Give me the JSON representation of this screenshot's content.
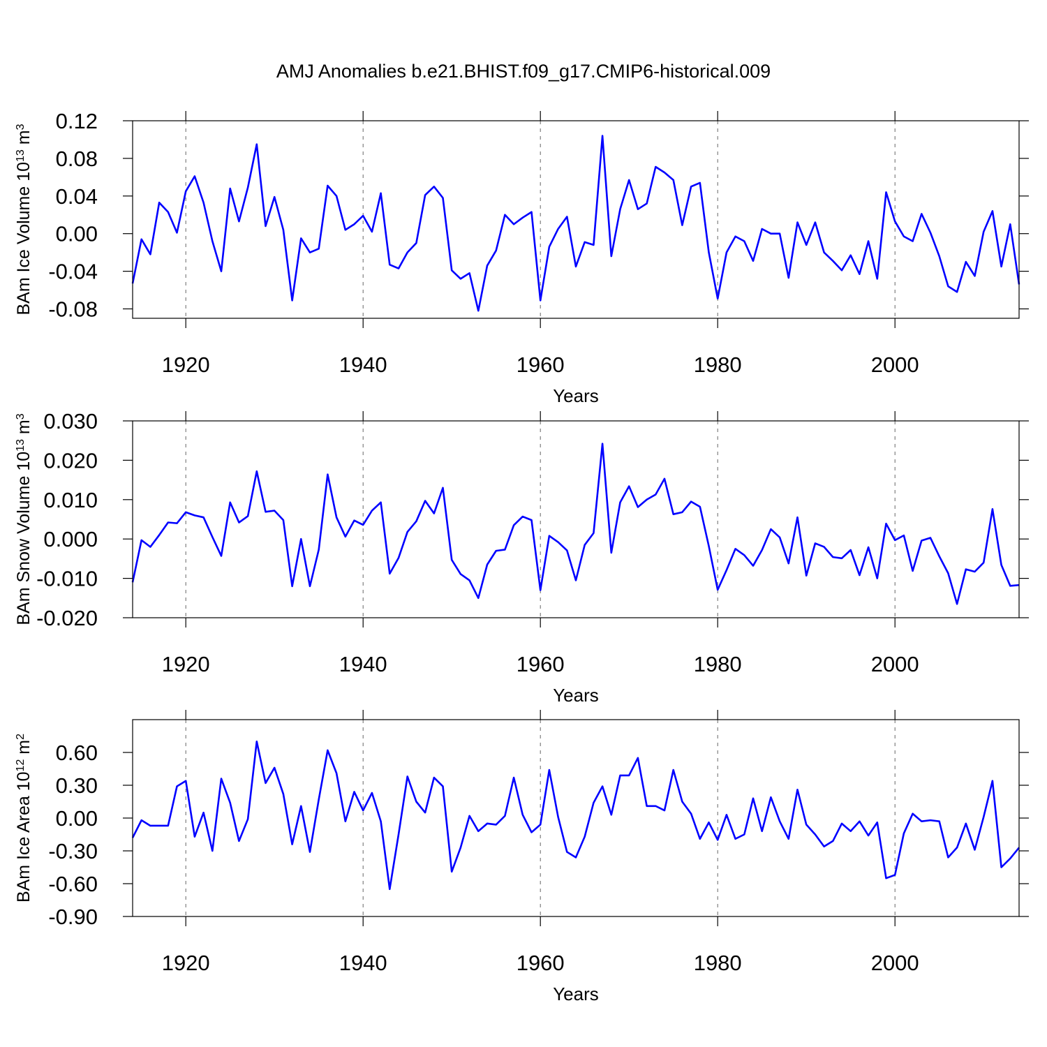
{
  "title": "AMJ Anomalies b.e21.BHIST.f09_g17.CMIP6-historical.009",
  "chart_data": [
    {
      "type": "line",
      "ylabel": [
        "BAm Ice Volume 10",
        "13",
        " m",
        "3"
      ],
      "xlabel": "Years",
      "xlim": [
        1914,
        2014
      ],
      "xticks": [
        1920,
        1940,
        1960,
        1980,
        2000
      ],
      "ylim": [
        -0.09,
        0.12
      ],
      "yticks": [
        0.12,
        0.08,
        0.04,
        {
          "value": 0,
          "label": "0.00"
        },
        -0.04,
        -0.08
      ],
      "xgrid": true,
      "x": [
        1914,
        1915,
        1916,
        1917,
        1918,
        1919,
        1920,
        1921,
        1922,
        1923,
        1924,
        1925,
        1926,
        1927,
        1928,
        1929,
        1930,
        1931,
        1932,
        1933,
        1934,
        1935,
        1936,
        1937,
        1938,
        1939,
        1940,
        1941,
        1942,
        1943,
        1944,
        1945,
        1946,
        1947,
        1948,
        1949,
        1950,
        1951,
        1952,
        1953,
        1954,
        1955,
        1956,
        1957,
        1958,
        1959,
        1960,
        1961,
        1962,
        1963,
        1964,
        1965,
        1966,
        1967,
        1968,
        1969,
        1970,
        1971,
        1972,
        1973,
        1974,
        1975,
        1976,
        1977,
        1978,
        1979,
        1980,
        1981,
        1982,
        1983,
        1984,
        1985,
        1986,
        1987,
        1988,
        1989,
        1990,
        1991,
        1992,
        1993,
        1994,
        1995,
        1996,
        1997,
        1998,
        1999,
        2000,
        2001,
        2002,
        2003,
        2004,
        2005,
        2006,
        2007,
        2008,
        2009,
        2010,
        2011,
        2012,
        2013,
        2014
      ],
      "series": [
        {
          "color": "#0000ff",
          "values": [
            -0.053,
            -0.006,
            -0.022,
            0.033,
            0.023,
            0.001,
            0.045,
            0.061,
            0.033,
            -0.008,
            -0.04,
            0.048,
            0.013,
            0.049,
            0.095,
            0.008,
            0.039,
            0.004,
            -0.071,
            -0.005,
            -0.02,
            -0.016,
            0.051,
            0.04,
            0.004,
            0.01,
            0.019,
            0.002,
            0.043,
            -0.033,
            -0.037,
            -0.02,
            -0.01,
            0.041,
            0.05,
            0.038,
            -0.039,
            -0.048,
            -0.042,
            -0.082,
            -0.034,
            -0.018,
            0.02,
            0.01,
            0.017,
            0.023,
            -0.071,
            -0.014,
            0.005,
            0.018,
            -0.035,
            -0.009,
            -0.012,
            0.104,
            -0.024,
            0.026,
            0.057,
            0.026,
            0.032,
            0.071,
            0.065,
            0.057,
            0.009,
            0.05,
            0.054,
            -0.02,
            -0.069,
            -0.02,
            -0.003,
            -0.008,
            -0.029,
            0.005,
            0.0,
            0.0,
            -0.047,
            0.012,
            -0.012,
            0.012,
            -0.02,
            -0.029,
            -0.039,
            -0.023,
            -0.043,
            -0.008,
            -0.048,
            0.044,
            0.013,
            -0.003,
            -0.008,
            0.021,
            0.001,
            -0.024,
            -0.056,
            -0.062,
            -0.03,
            -0.045,
            0.002,
            0.024,
            -0.035,
            0.01,
            -0.054
          ]
        }
      ]
    },
    {
      "type": "line",
      "ylabel": [
        "BAm Snow Volume 10",
        "13",
        " m",
        "3"
      ],
      "xlabel": "Years",
      "xlim": [
        1914,
        2014
      ],
      "xticks": [
        1920,
        1940,
        1960,
        1980,
        2000
      ],
      "ylim": [
        -0.02,
        0.03
      ],
      "yticks": [
        {
          "value": 0.03,
          "label": "0.030"
        },
        {
          "value": 0.02,
          "label": "0.020"
        },
        {
          "value": 0.01,
          "label": "0.010"
        },
        {
          "value": 0,
          "label": "0.000"
        },
        {
          "value": -0.01,
          "label": "-0.010"
        },
        {
          "value": -0.02,
          "label": "-0.020"
        }
      ],
      "xgrid": true,
      "x": [
        1914,
        1915,
        1916,
        1917,
        1918,
        1919,
        1920,
        1921,
        1922,
        1923,
        1924,
        1925,
        1926,
        1927,
        1928,
        1929,
        1930,
        1931,
        1932,
        1933,
        1934,
        1935,
        1936,
        1937,
        1938,
        1939,
        1940,
        1941,
        1942,
        1943,
        1944,
        1945,
        1946,
        1947,
        1948,
        1949,
        1950,
        1951,
        1952,
        1953,
        1954,
        1955,
        1956,
        1957,
        1958,
        1959,
        1960,
        1961,
        1962,
        1963,
        1964,
        1965,
        1966,
        1967,
        1968,
        1969,
        1970,
        1971,
        1972,
        1973,
        1974,
        1975,
        1976,
        1977,
        1978,
        1979,
        1980,
        1981,
        1982,
        1983,
        1984,
        1985,
        1986,
        1987,
        1988,
        1989,
        1990,
        1991,
        1992,
        1993,
        1994,
        1995,
        1996,
        1997,
        1998,
        1999,
        2000,
        2001,
        2002,
        2003,
        2004,
        2005,
        2006,
        2007,
        2008,
        2009,
        2010,
        2011,
        2012,
        2013,
        2014
      ],
      "series": [
        {
          "color": "#0000ff",
          "values": [
            -0.011,
            -0.0003,
            -0.002,
            0.001,
            0.0042,
            0.004,
            0.0068,
            0.006,
            0.0055,
            0.0005,
            -0.0043,
            0.0093,
            0.0042,
            0.0058,
            0.0172,
            0.0069,
            0.0072,
            0.0048,
            -0.012,
            0.0,
            -0.012,
            -0.0027,
            0.0164,
            0.0055,
            0.0006,
            0.0047,
            0.0036,
            0.0072,
            0.0093,
            -0.0088,
            -0.0048,
            0.0018,
            0.0045,
            0.0097,
            0.0065,
            0.013,
            -0.0053,
            -0.0089,
            -0.0105,
            -0.015,
            -0.0065,
            -0.003,
            -0.0027,
            0.0035,
            0.0057,
            0.0048,
            -0.013,
            0.0008,
            -0.0008,
            -0.0029,
            -0.0105,
            -0.0015,
            0.0015,
            0.0242,
            -0.0035,
            0.0093,
            0.0134,
            0.0081,
            0.01,
            0.0113,
            0.0153,
            0.0063,
            0.0068,
            0.0095,
            0.0082,
            -0.0018,
            -0.0129,
            -0.0079,
            -0.0025,
            -0.0041,
            -0.0068,
            -0.0028,
            0.0025,
            0.0004,
            -0.0062,
            0.0055,
            -0.0093,
            -0.0011,
            -0.002,
            -0.0046,
            -0.0049,
            -0.0028,
            -0.0092,
            -0.0021,
            -0.01,
            0.0039,
            -0.0003,
            0.0009,
            -0.0081,
            -0.0004,
            0.0003,
            -0.0044,
            -0.0087,
            -0.0165,
            -0.0077,
            -0.0083,
            -0.006,
            0.0076,
            -0.0066,
            -0.0119,
            -0.0117
          ]
        }
      ]
    },
    {
      "type": "line",
      "ylabel": [
        "BAm Ice Area 10",
        "12",
        " m",
        "2"
      ],
      "xlabel": "Years",
      "xlim": [
        1914,
        2014
      ],
      "xticks": [
        1920,
        1940,
        1960,
        1980,
        2000
      ],
      "ylim": [
        -0.9,
        0.9
      ],
      "yticks": [
        {
          "value": 0.6,
          "label": "0.60"
        },
        {
          "value": 0.3,
          "label": "0.30"
        },
        {
          "value": 0,
          "label": "0.00"
        },
        {
          "value": -0.3,
          "label": "-0.30"
        },
        {
          "value": -0.6,
          "label": "-0.60"
        },
        {
          "value": -0.9,
          "label": "-0.90"
        }
      ],
      "xgrid": true,
      "x": [
        1914,
        1915,
        1916,
        1917,
        1918,
        1919,
        1920,
        1921,
        1922,
        1923,
        1924,
        1925,
        1926,
        1927,
        1928,
        1929,
        1930,
        1931,
        1932,
        1933,
        1934,
        1935,
        1936,
        1937,
        1938,
        1939,
        1940,
        1941,
        1942,
        1943,
        1944,
        1945,
        1946,
        1947,
        1948,
        1949,
        1950,
        1951,
        1952,
        1953,
        1954,
        1955,
        1956,
        1957,
        1958,
        1959,
        1960,
        1961,
        1962,
        1963,
        1964,
        1965,
        1966,
        1967,
        1968,
        1969,
        1970,
        1971,
        1972,
        1973,
        1974,
        1975,
        1976,
        1977,
        1978,
        1979,
        1980,
        1981,
        1982,
        1983,
        1984,
        1985,
        1986,
        1987,
        1988,
        1989,
        1990,
        1991,
        1992,
        1993,
        1994,
        1995,
        1996,
        1997,
        1998,
        1999,
        2000,
        2001,
        2002,
        2003,
        2004,
        2005,
        2006,
        2007,
        2008,
        2009,
        2010,
        2011,
        2012,
        2013,
        2014
      ],
      "series": [
        {
          "color": "#0000ff",
          "values": [
            -0.18,
            -0.02,
            -0.07,
            -0.07,
            -0.07,
            0.29,
            0.34,
            -0.17,
            0.05,
            -0.3,
            0.36,
            0.14,
            -0.21,
            -0.01,
            0.7,
            0.32,
            0.46,
            0.22,
            -0.24,
            0.11,
            -0.31,
            0.17,
            0.62,
            0.41,
            -0.03,
            0.24,
            0.07,
            0.23,
            -0.03,
            -0.65,
            -0.15,
            0.38,
            0.15,
            0.05,
            0.37,
            0.29,
            -0.49,
            -0.27,
            0.02,
            -0.12,
            -0.05,
            -0.06,
            0.02,
            0.37,
            0.03,
            -0.13,
            -0.06,
            0.44,
            0.01,
            -0.31,
            -0.36,
            -0.17,
            0.14,
            0.29,
            0.03,
            0.39,
            0.39,
            0.55,
            0.11,
            0.11,
            0.07,
            0.44,
            0.15,
            0.04,
            -0.19,
            -0.04,
            -0.2,
            0.03,
            -0.19,
            -0.15,
            0.18,
            -0.12,
            0.19,
            -0.03,
            -0.19,
            0.26,
            -0.06,
            -0.15,
            -0.26,
            -0.21,
            -0.05,
            -0.12,
            -0.03,
            -0.16,
            -0.04,
            -0.55,
            -0.52,
            -0.14,
            0.04,
            -0.03,
            -0.02,
            -0.03,
            -0.36,
            -0.27,
            -0.05,
            -0.29,
            0.01,
            0.34,
            -0.45,
            -0.37,
            -0.27
          ]
        }
      ]
    }
  ]
}
